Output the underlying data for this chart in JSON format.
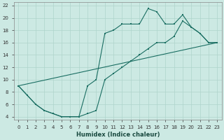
{
  "xlabel": "Humidex (Indice chaleur)",
  "xlim": [
    -0.5,
    23.5
  ],
  "ylim": [
    3.5,
    22.5
  ],
  "xticks": [
    0,
    1,
    2,
    3,
    4,
    5,
    6,
    7,
    8,
    9,
    10,
    11,
    12,
    13,
    14,
    15,
    16,
    17,
    18,
    19,
    20,
    21,
    22,
    23
  ],
  "yticks": [
    4,
    6,
    8,
    10,
    12,
    14,
    16,
    18,
    20,
    22
  ],
  "bg_color": "#cce9e3",
  "line_color": "#1a6e62",
  "grid_color": "#aed4cc",
  "line1_x": [
    0,
    1,
    2,
    3,
    4,
    5,
    6,
    7,
    8,
    9,
    10,
    11,
    12,
    13,
    14,
    15,
    16,
    17,
    18,
    19,
    20,
    21,
    22,
    23
  ],
  "line1_y": [
    9,
    7.5,
    6,
    5,
    4.5,
    4,
    4,
    4,
    9,
    10,
    17.5,
    18,
    19,
    19,
    19,
    21.5,
    21,
    19,
    19,
    20.5,
    18.5,
    17.5,
    16,
    16
  ],
  "line2_x": [
    0,
    1,
    2,
    3,
    4,
    5,
    6,
    7,
    8,
    9,
    10,
    11,
    12,
    13,
    14,
    15,
    16,
    17,
    18,
    19,
    20,
    21,
    22,
    23
  ],
  "line2_y": [
    9,
    7.5,
    6,
    5,
    4.5,
    4,
    4,
    4,
    4.5,
    5,
    10,
    11,
    12,
    13,
    14,
    15,
    16,
    16,
    17,
    19.5,
    18.5,
    17.5,
    16,
    16
  ],
  "line3_x": [
    0,
    23
  ],
  "line3_y": [
    9,
    16
  ]
}
